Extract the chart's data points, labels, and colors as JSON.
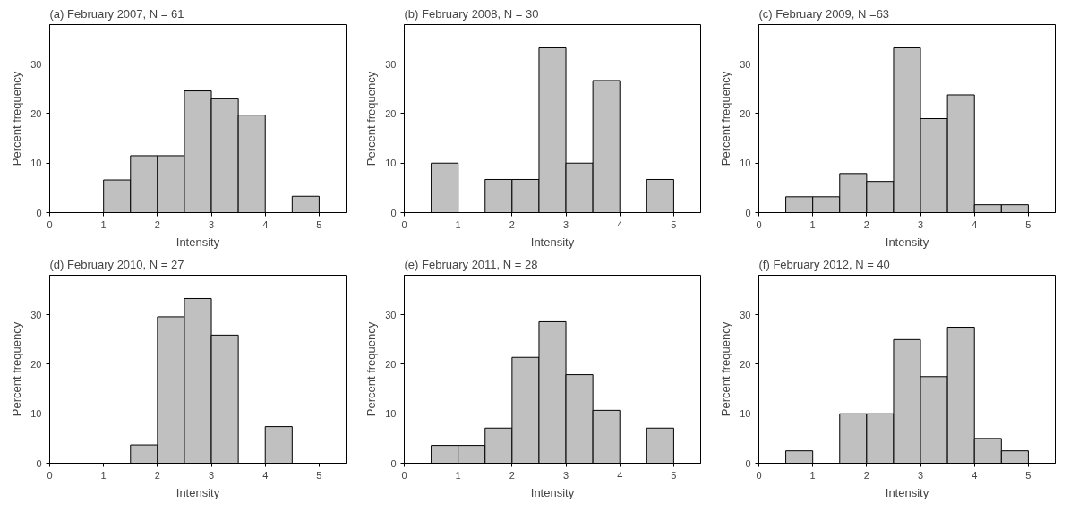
{
  "chart_data": [
    {
      "type": "histogram",
      "title": "(a) February 2007, N = 61",
      "xlabel": "Intensity",
      "ylabel": "Percent frequency",
      "bins": [
        0,
        0.5,
        1,
        1.5,
        2,
        2.5,
        3,
        3.5,
        4,
        4.5,
        5
      ],
      "values": [
        0,
        0,
        6.6,
        11.5,
        11.5,
        24.6,
        23.0,
        19.7,
        0,
        3.3
      ],
      "color": "#c0c0c0",
      "xlim": [
        0,
        5.5
      ],
      "ylim": [
        0,
        38
      ],
      "xticks": [
        0,
        1,
        2,
        3,
        4,
        5
      ],
      "yticks": [
        0,
        10,
        20,
        30
      ],
      "grid": false
    },
    {
      "type": "histogram",
      "title": "(b) February 2008, N = 30",
      "xlabel": "Intensity",
      "ylabel": "Percent frequency",
      "bins": [
        0,
        0.5,
        1,
        1.5,
        2,
        2.5,
        3,
        3.5,
        4,
        4.5,
        5
      ],
      "values": [
        0,
        10.0,
        0,
        6.7,
        6.7,
        33.3,
        10.0,
        26.7,
        0,
        6.7
      ],
      "color": "#c0c0c0",
      "xlim": [
        0,
        5.5
      ],
      "ylim": [
        0,
        38
      ],
      "xticks": [
        0,
        1,
        2,
        3,
        4,
        5
      ],
      "yticks": [
        0,
        10,
        20,
        30
      ],
      "grid": false
    },
    {
      "type": "histogram",
      "title": "(c) February 2009, N =63",
      "xlabel": "Intensity",
      "ylabel": "Percent frequency",
      "bins": [
        0,
        0.5,
        1,
        1.5,
        2,
        2.5,
        3,
        3.5,
        4,
        4.5,
        5
      ],
      "values": [
        0,
        3.2,
        3.2,
        7.9,
        6.3,
        33.3,
        19.0,
        23.8,
        1.6,
        1.6
      ],
      "color": "#c0c0c0",
      "xlim": [
        0,
        5.5
      ],
      "ylim": [
        0,
        38
      ],
      "xticks": [
        0,
        1,
        2,
        3,
        4,
        5
      ],
      "yticks": [
        0,
        10,
        20,
        30
      ],
      "grid": false
    },
    {
      "type": "histogram",
      "title": "(d) February 2010, N = 27",
      "xlabel": "Intensity",
      "ylabel": "Percent frequency",
      "bins": [
        0,
        0.5,
        1,
        1.5,
        2,
        2.5,
        3,
        3.5,
        4,
        4.5,
        5
      ],
      "values": [
        0,
        0,
        0,
        3.7,
        29.6,
        33.3,
        25.9,
        0,
        7.4,
        0
      ],
      "color": "#c0c0c0",
      "xlim": [
        0,
        5.5
      ],
      "ylim": [
        0,
        38
      ],
      "xticks": [
        0,
        1,
        2,
        3,
        4,
        5
      ],
      "yticks": [
        0,
        10,
        20,
        30
      ],
      "grid": false
    },
    {
      "type": "histogram",
      "title": "(e) February 2011, N = 28",
      "xlabel": "Intensity",
      "ylabel": "Percent frequency",
      "bins": [
        0,
        0.5,
        1,
        1.5,
        2,
        2.5,
        3,
        3.5,
        4,
        4.5,
        5
      ],
      "values": [
        0,
        3.6,
        3.6,
        7.1,
        21.4,
        28.6,
        17.9,
        10.7,
        0,
        7.1
      ],
      "color": "#c0c0c0",
      "xlim": [
        0,
        5.5
      ],
      "ylim": [
        0,
        38
      ],
      "xticks": [
        0,
        1,
        2,
        3,
        4,
        5
      ],
      "yticks": [
        0,
        10,
        20,
        30
      ],
      "grid": false
    },
    {
      "type": "histogram",
      "title": "(f) February 2012, N = 40",
      "xlabel": "Intensity",
      "ylabel": "Percent frequency",
      "bins": [
        0,
        0.5,
        1,
        1.5,
        2,
        2.5,
        3,
        3.5,
        4,
        4.5,
        5
      ],
      "values": [
        0,
        2.5,
        0,
        10.0,
        10.0,
        25.0,
        17.5,
        27.5,
        5.0,
        2.5
      ],
      "color": "#c0c0c0",
      "xlim": [
        0,
        5.5
      ],
      "ylim": [
        0,
        38
      ],
      "xticks": [
        0,
        1,
        2,
        3,
        4,
        5
      ],
      "yticks": [
        0,
        10,
        20,
        30
      ],
      "grid": false
    }
  ]
}
